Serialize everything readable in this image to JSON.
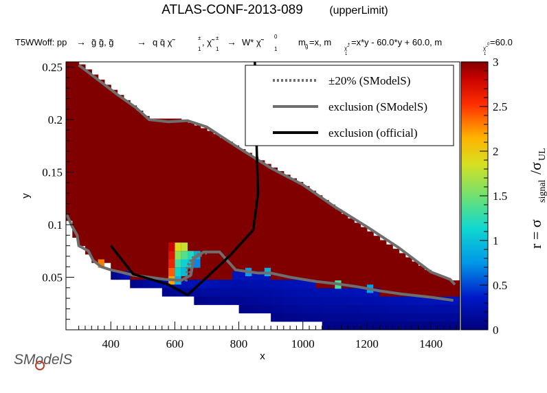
{
  "title_main": "ATLAS-CONF-2013-089",
  "title_sub": "(upperLimit)",
  "process": {
    "prefix": "T5WWoff: pp",
    "step1": "g̃ g̃, g̃",
    "step2": "q q̄  χ̃",
    "step3": ", χ̃",
    "step4": "W* χ̃",
    "step5": ""
  },
  "masses_text": {
    "m1": "m",
    "m1_sub": "g̃",
    "m1_val": "=x, m",
    "m2_sub": "χ̃",
    "m2_val": "=x*y - 60.0*y + 60.0, m",
    "m3_sub": "χ̃",
    "m3_val": "=60.0"
  },
  "logo_text": "SModelS",
  "legend": [
    {
      "label": "±20% (SModelS)",
      "style": "dotted",
      "color": "#6e6e6e"
    },
    {
      "label": "exclusion (SModelS)",
      "style": "solid",
      "color": "#6e6e6e"
    },
    {
      "label": "exclusion (official)",
      "style": "solid",
      "color": "#000000"
    }
  ],
  "chart_data": {
    "type": "heatmap",
    "title": "ATLAS-CONF-2013-089",
    "xlabel": "x",
    "ylabel": "y",
    "zlabel_main": "r = σ",
    "zlabel_sub1": "signal",
    "zlabel_mid": "/σ",
    "zlabel_sub2": "UL",
    "xlim": [
      260,
      1490
    ],
    "ylim": [
      0.0,
      0.255
    ],
    "zlim": [
      0,
      3
    ],
    "x_ticks": [
      400,
      600,
      800,
      1000,
      1200,
      1400
    ],
    "x_tick_labels": [
      "400",
      "600",
      "800",
      "1000",
      "1200",
      "1400"
    ],
    "y_ticks": [
      0.05,
      0.1,
      0.15,
      0.2,
      0.25
    ],
    "y_tick_labels": [
      "0.05",
      "0.1",
      "0.15",
      "0.2",
      "0.25"
    ],
    "z_ticks": [
      0,
      0.5,
      1,
      1.5,
      2,
      2.5,
      3
    ],
    "z_tick_labels": [
      "0",
      "0.5",
      "1",
      "1.5",
      "2",
      "2.5",
      "3"
    ],
    "upper_edge": [
      [
        260,
        0.255
      ],
      [
        300,
        0.255
      ],
      [
        420,
        0.226
      ],
      [
        520,
        0.201
      ],
      [
        620,
        0.201
      ],
      [
        720,
        0.188
      ],
      [
        860,
        0.163
      ],
      [
        1000,
        0.139
      ],
      [
        1150,
        0.106
      ],
      [
        1300,
        0.075
      ],
      [
        1400,
        0.055
      ],
      [
        1470,
        0.047
      ]
    ],
    "red_lower": [
      [
        260,
        0.108
      ],
      [
        290,
        0.086
      ],
      [
        340,
        0.069
      ],
      [
        400,
        0.059
      ],
      [
        470,
        0.052
      ],
      [
        560,
        0.049
      ],
      [
        620,
        0.047
      ],
      [
        700,
        0.046
      ],
      [
        800,
        0.054
      ],
      [
        900,
        0.052
      ],
      [
        1000,
        0.046
      ],
      [
        1100,
        0.042
      ],
      [
        1200,
        0.038
      ],
      [
        1300,
        0.033
      ],
      [
        1400,
        0.03
      ],
      [
        1480,
        0.029
      ]
    ],
    "blue_lower": [
      [
        400,
        0.053
      ],
      [
        450,
        0.045
      ],
      [
        530,
        0.038
      ],
      [
        620,
        0.031
      ],
      [
        700,
        0.025
      ],
      [
        800,
        0.02
      ],
      [
        900,
        0.012
      ],
      [
        1000,
        0.006
      ],
      [
        1100,
        0.003
      ],
      [
        1490,
        0.003
      ]
    ],
    "hot_cells": [
      [
        610,
        0.079,
        1.9
      ],
      [
        610,
        0.071,
        1.6
      ],
      [
        610,
        0.063,
        1.3
      ],
      [
        610,
        0.055,
        1.1
      ],
      [
        610,
        0.047,
        0.9
      ],
      [
        630,
        0.079,
        1.8
      ],
      [
        630,
        0.071,
        1.4
      ],
      [
        630,
        0.063,
        1.1
      ],
      [
        630,
        0.055,
        0.95
      ],
      [
        650,
        0.071,
        1.2
      ],
      [
        650,
        0.063,
        1.0
      ],
      [
        670,
        0.071,
        0.9
      ],
      [
        670,
        0.063,
        0.7
      ],
      [
        590,
        0.055,
        2.4
      ],
      [
        590,
        0.047,
        2.2
      ],
      [
        590,
        0.063,
        2.6
      ],
      [
        590,
        0.071,
        2.7
      ],
      [
        590,
        0.079,
        2.8
      ],
      [
        370,
        0.063,
        2.3
      ],
      [
        830,
        0.055,
        0.8
      ],
      [
        890,
        0.055,
        0.9
      ],
      [
        1110,
        0.043,
        1.35
      ],
      [
        1210,
        0.039,
        0.8
      ]
    ],
    "official_exclusion": [
      [
        400,
        0.08
      ],
      [
        470,
        0.053
      ],
      [
        580,
        0.043
      ],
      [
        640,
        0.033
      ],
      [
        700,
        0.05
      ],
      [
        770,
        0.07
      ],
      [
        845,
        0.095
      ],
      [
        860,
        0.13
      ],
      [
        855,
        0.18
      ],
      [
        850,
        0.255
      ]
    ],
    "smodels_exclusion_upper": [
      [
        300,
        0.252
      ],
      [
        330,
        0.245
      ],
      [
        420,
        0.224
      ],
      [
        480,
        0.211
      ],
      [
        520,
        0.2
      ],
      [
        580,
        0.198
      ],
      [
        640,
        0.199
      ],
      [
        700,
        0.193
      ],
      [
        800,
        0.173
      ],
      [
        900,
        0.154
      ],
      [
        1000,
        0.138
      ],
      [
        1100,
        0.117
      ],
      [
        1200,
        0.098
      ],
      [
        1300,
        0.078
      ],
      [
        1400,
        0.055
      ],
      [
        1460,
        0.048
      ],
      [
        1475,
        0.043
      ]
    ],
    "smodels_exclusion_lower": [
      [
        262,
        0.11
      ],
      [
        280,
        0.098
      ],
      [
        295,
        0.09
      ],
      [
        300,
        0.08
      ],
      [
        330,
        0.075
      ],
      [
        345,
        0.066
      ],
      [
        370,
        0.06
      ],
      [
        400,
        0.057
      ],
      [
        430,
        0.055
      ],
      [
        470,
        0.052
      ],
      [
        520,
        0.05
      ],
      [
        570,
        0.048
      ],
      [
        620,
        0.047
      ],
      [
        650,
        0.052
      ],
      [
        660,
        0.068
      ],
      [
        690,
        0.074
      ],
      [
        740,
        0.074
      ],
      [
        790,
        0.057
      ],
      [
        860,
        0.054
      ],
      [
        900,
        0.054
      ],
      [
        960,
        0.05
      ],
      [
        1040,
        0.046
      ],
      [
        1100,
        0.044
      ],
      [
        1170,
        0.041
      ],
      [
        1240,
        0.037
      ],
      [
        1310,
        0.034
      ],
      [
        1400,
        0.031
      ],
      [
        1470,
        0.028
      ]
    ],
    "plus20": [
      [
        645,
        0.05
      ],
      [
        655,
        0.066
      ],
      [
        675,
        0.073
      ],
      [
        700,
        0.073
      ]
    ],
    "minus20": [
      [
        635,
        0.046
      ],
      [
        640,
        0.061
      ],
      [
        660,
        0.07
      ],
      [
        690,
        0.071
      ]
    ]
  }
}
